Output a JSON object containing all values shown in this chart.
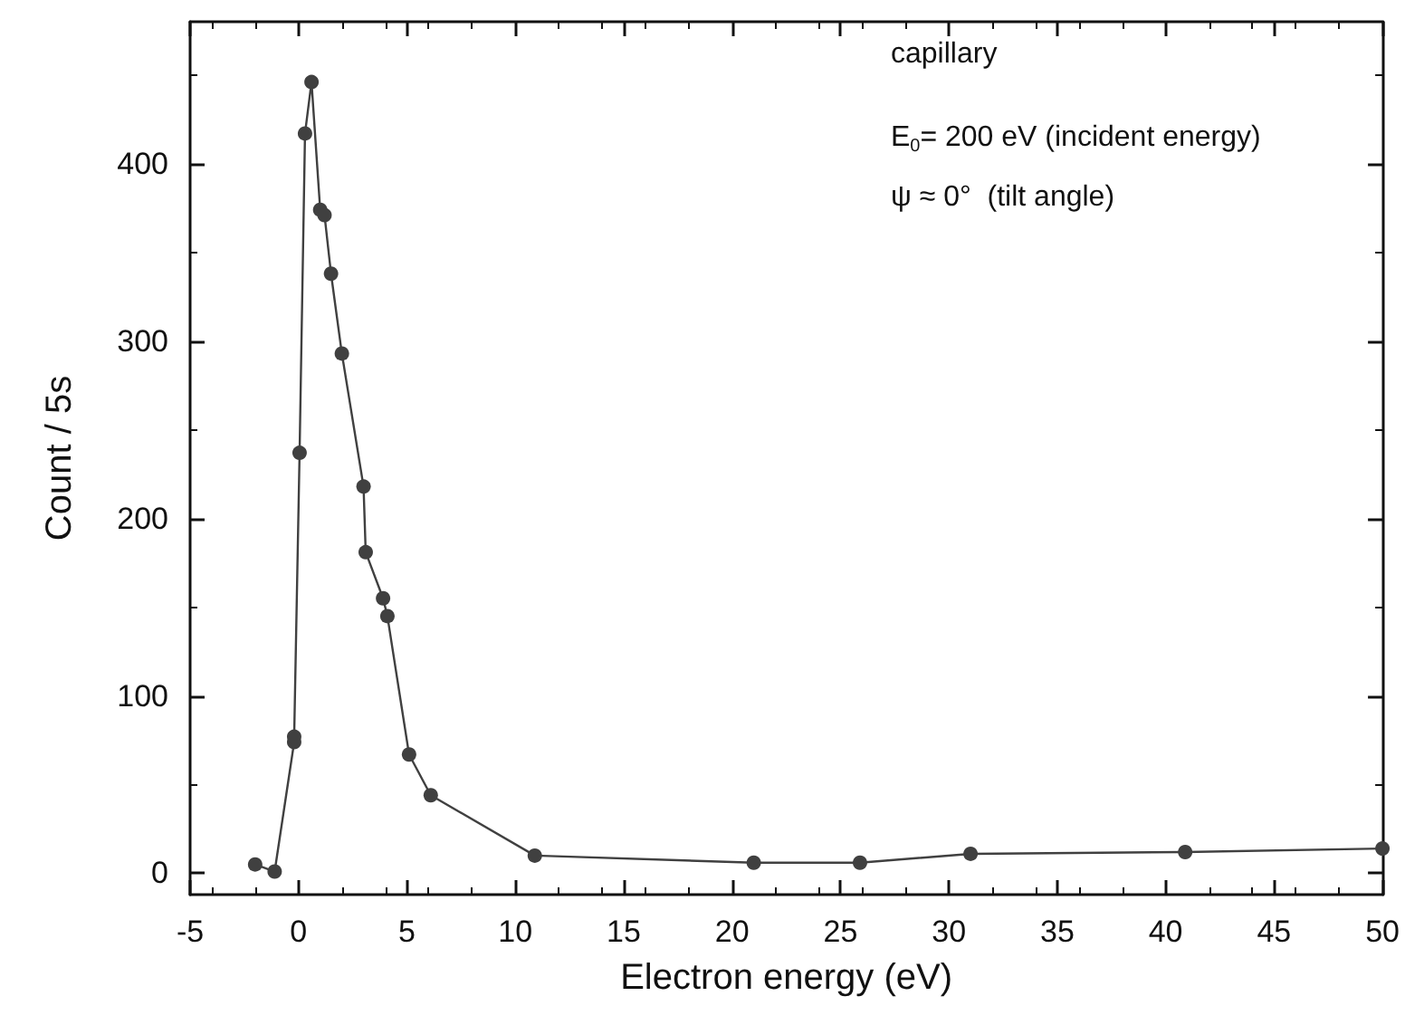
{
  "chart_data": {
    "type": "line",
    "xlabel": "Electron energy (eV)",
    "ylabel": "Count / 5s",
    "annotations": [
      "capillary",
      "E$_{0}$= 200 eV (incident energy)",
      "ψ ≈ 0°  (tilt angle)"
    ],
    "series": [
      {
        "color": "#404040",
        "x": [
          -2,
          -1.1,
          -0.2,
          -0.2,
          0.05,
          0.3,
          0.6,
          1.0,
          1.2,
          1.5,
          2.0,
          3.0,
          3.1,
          3.9,
          4.1,
          5.1,
          6.1,
          10.9,
          21,
          25.9,
          31,
          40.9,
          50
        ],
        "values": [
          5,
          1,
          74,
          77,
          237,
          417,
          446,
          374,
          371,
          338,
          293,
          218,
          181,
          155,
          145,
          67,
          44,
          10,
          6,
          6,
          11,
          12,
          14
        ]
      }
    ],
    "xlim": [
      -5,
      50
    ],
    "xticks": [
      -5,
      0,
      5,
      10,
      15,
      20,
      25,
      30,
      35,
      40,
      45,
      50
    ],
    "ylim": [
      -12,
      480
    ],
    "yticks": [
      0,
      100,
      200,
      300,
      400
    ],
    "marker": "circle",
    "line_style": "solid"
  }
}
